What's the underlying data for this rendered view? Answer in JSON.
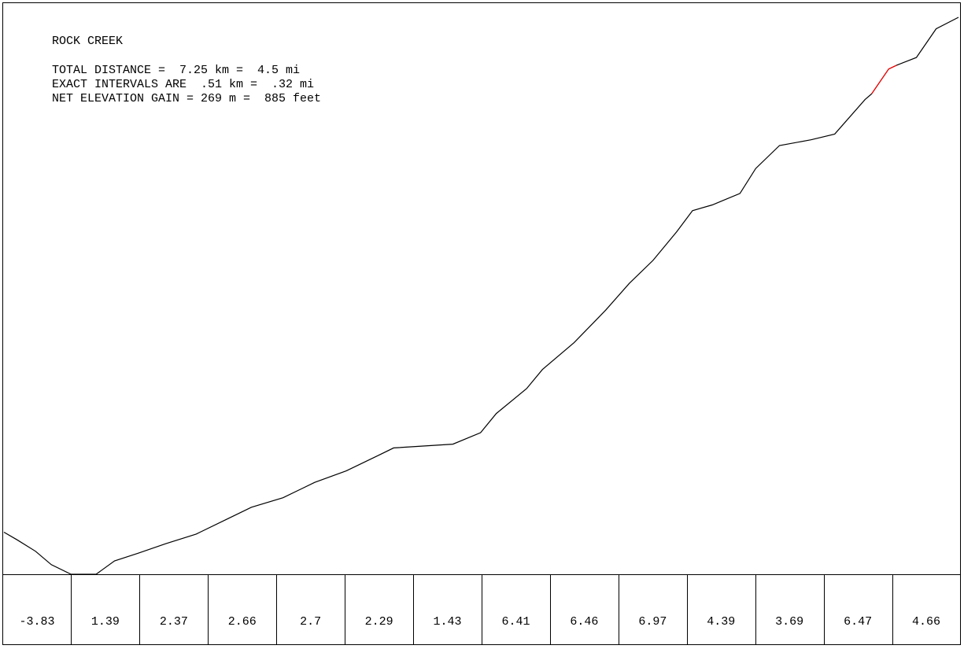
{
  "chart_data": {
    "type": "line",
    "title": "ROCK CREEK",
    "info_lines": [
      "TOTAL DISTANCE =  7.25 km =  4.5 mi",
      "EXACT INTERVALS ARE  .51 km =  .32 mi",
      "NET ELEVATION GAIN = 269 m =  885 feet"
    ],
    "x": [
      0,
      0.1,
      0.24,
      0.36,
      0.51,
      0.7,
      0.84,
      1.02,
      1.23,
      1.46,
      1.7,
      1.88,
      2.12,
      2.36,
      2.6,
      2.84,
      2.96,
      3.41,
      3.62,
      3.74,
      3.97,
      4.09,
      4.33,
      4.57,
      4.75,
      4.93,
      5.11,
      5.23,
      5.38,
      5.59,
      5.71,
      5.89,
      6.13,
      6.31,
      6.54,
      6.59,
      6.72,
      6.78,
      6.93,
      7.08,
      7.25
    ],
    "series": [
      {
        "color": "#000000",
        "values": [
          22,
          18,
          12,
          5,
          0,
          0,
          7,
          11,
          16,
          21,
          29,
          35,
          40,
          48,
          54,
          62,
          66,
          68,
          74,
          84,
          97,
          107,
          121,
          138,
          152,
          164,
          179,
          190,
          193,
          199,
          212,
          224,
          227,
          230,
          248,
          251,
          264,
          266,
          270,
          285,
          291
        ]
      },
      {
        "color": "#ff0000",
        "values": [
          null,
          null,
          null,
          null,
          null,
          null,
          null,
          null,
          null,
          null,
          null,
          null,
          null,
          null,
          null,
          null,
          null,
          null,
          null,
          null,
          null,
          null,
          null,
          null,
          null,
          null,
          null,
          null,
          null,
          null,
          null,
          null,
          null,
          null,
          null,
          251,
          264,
          266,
          null,
          null,
          null
        ]
      }
    ],
    "xlim": [
      0,
      7.25
    ],
    "ylim": [
      0,
      298
    ],
    "grades": [
      -3.83,
      1.39,
      2.37,
      2.66,
      2.7,
      2.29,
      1.43,
      6.41,
      6.46,
      6.97,
      4.39,
      3.69,
      6.47,
      4.66
    ]
  }
}
